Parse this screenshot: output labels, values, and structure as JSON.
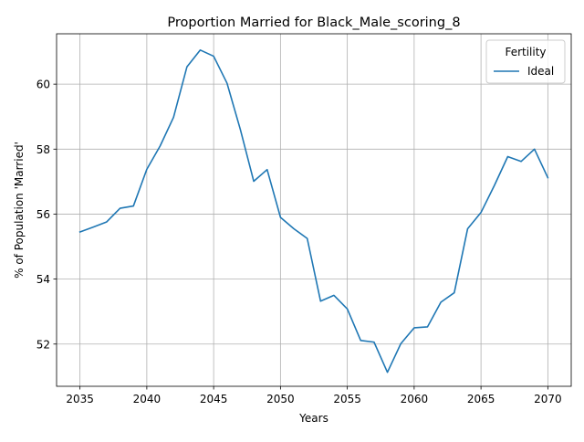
{
  "chart_data": {
    "type": "line",
    "title": "Proportion Married for Black_Male_scoring_8",
    "xlabel": "Years",
    "ylabel": "% of Population 'Married'",
    "xlim": [
      2033.25,
      2071.75
    ],
    "ylim": [
      50.7,
      61.55
    ],
    "xticks": [
      2035,
      2040,
      2045,
      2050,
      2055,
      2060,
      2065,
      2070
    ],
    "yticks": [
      52,
      54,
      56,
      58,
      60
    ],
    "grid": true,
    "legend": {
      "title": "Fertility",
      "placement": "top-right"
    },
    "series": [
      {
        "name": "Ideal",
        "color": "#1f77b4",
        "x": [
          2035,
          2036,
          2037,
          2038,
          2039,
          2040,
          2041,
          2042,
          2043,
          2044,
          2045,
          2046,
          2047,
          2048,
          2049,
          2050,
          2051,
          2052,
          2053,
          2054,
          2055,
          2056,
          2057,
          2058,
          2059,
          2060,
          2061,
          2062,
          2063,
          2064,
          2065,
          2066,
          2067,
          2068,
          2069,
          2070
        ],
        "y": [
          55.45,
          55.6,
          55.76,
          56.18,
          56.25,
          57.38,
          58.1,
          58.98,
          60.53,
          61.05,
          60.86,
          60.03,
          58.6,
          57.01,
          57.37,
          55.9,
          55.55,
          55.25,
          53.32,
          53.5,
          53.08,
          52.11,
          52.06,
          51.13,
          52.01,
          52.5,
          52.53,
          53.29,
          53.58,
          55.55,
          56.05,
          56.88,
          57.77,
          57.62,
          58.0,
          57.12
        ]
      }
    ]
  }
}
